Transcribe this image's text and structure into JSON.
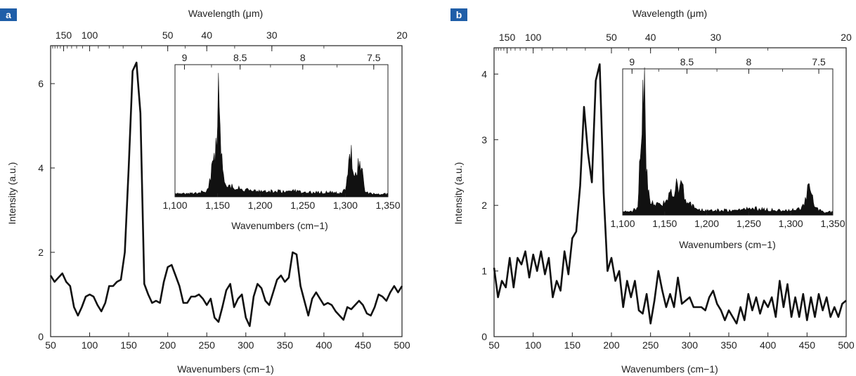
{
  "chart_data": [
    {
      "panel": "a",
      "type": "line",
      "xlabel": "Wavenumbers (cm−1)",
      "ylabel": "Intensity (a.u.)",
      "top_axis_label": "Wavelength (μm)",
      "xlim": [
        50,
        500
      ],
      "ylim": [
        0,
        6.9
      ],
      "x_ticks": [
        "50",
        "100",
        "150",
        "200",
        "250",
        "300",
        "350",
        "400",
        "450",
        "500"
      ],
      "y_ticks": [
        "0",
        "2",
        "4",
        "6"
      ],
      "top_ticks": [
        "150",
        "100",
        "50",
        "40",
        "30",
        "20"
      ],
      "series": [
        {
          "x": [
            50,
            55,
            60,
            65,
            70,
            75,
            80,
            85,
            90,
            95,
            100,
            105,
            110,
            115,
            120,
            125,
            130,
            135,
            140,
            145,
            150,
            155,
            160,
            165,
            170,
            175,
            180,
            185,
            190,
            195,
            200,
            205,
            210,
            215,
            220,
            225,
            230,
            235,
            240,
            245,
            250,
            255,
            260,
            265,
            270,
            275,
            280,
            285,
            290,
            295,
            300,
            305,
            310,
            315,
            320,
            325,
            330,
            335,
            340,
            345,
            350,
            355,
            360,
            365,
            370,
            375,
            380,
            385,
            390,
            395,
            400,
            405,
            410,
            415,
            420,
            425,
            430,
            435,
            440,
            445,
            450,
            455,
            460,
            465,
            470,
            475,
            480,
            485,
            490,
            495,
            500
          ],
          "y": [
            1.45,
            1.3,
            1.4,
            1.5,
            1.3,
            1.2,
            0.7,
            0.5,
            0.7,
            0.95,
            1.0,
            0.95,
            0.75,
            0.6,
            0.8,
            1.2,
            1.2,
            1.3,
            1.35,
            2.0,
            4.0,
            6.3,
            6.5,
            5.3,
            1.25,
            1.0,
            0.8,
            0.85,
            0.8,
            1.3,
            1.65,
            1.7,
            1.45,
            1.2,
            0.8,
            0.8,
            0.95,
            0.95,
            1.0,
            0.9,
            0.75,
            0.9,
            0.45,
            0.35,
            0.7,
            1.1,
            1.25,
            0.7,
            0.9,
            1.0,
            0.45,
            0.25,
            0.95,
            1.25,
            1.15,
            0.85,
            0.75,
            1.05,
            1.35,
            1.45,
            1.3,
            1.4,
            2.0,
            1.95,
            1.2,
            0.85,
            0.5,
            0.9,
            1.05,
            0.9,
            0.75,
            0.8,
            0.75,
            0.6,
            0.5,
            0.4,
            0.7,
            0.65,
            0.75,
            0.85,
            0.75,
            0.55,
            0.5,
            0.7,
            1.0,
            0.95,
            0.85,
            1.05,
            1.2,
            1.05,
            1.2
          ]
        }
      ],
      "inset": {
        "type": "area",
        "xlabel": "Wavenumbers (cm−1)",
        "xlim": [
          1100,
          1350
        ],
        "x_ticks": [
          "1,100",
          "1,150",
          "1,200",
          "1,250",
          "1,300",
          "1,350"
        ],
        "top_ticks": [
          "9",
          "8.5",
          "8",
          "7.5"
        ],
        "x": [
          1100,
          1110,
          1120,
          1130,
          1138,
          1142,
          1145,
          1147,
          1149,
          1150,
          1151,
          1152,
          1153,
          1154,
          1156,
          1158,
          1162,
          1168,
          1175,
          1185,
          1200,
          1220,
          1240,
          1260,
          1280,
          1295,
          1300,
          1303,
          1305,
          1307,
          1309,
          1311,
          1313,
          1315,
          1317,
          1319,
          1321,
          1323,
          1326,
          1330,
          1340,
          1350
        ],
        "y": [
          0.02,
          0.02,
          0.02,
          0.03,
          0.05,
          0.15,
          0.28,
          0.33,
          0.45,
          0.65,
          0.95,
          0.98,
          0.6,
          0.35,
          0.18,
          0.12,
          0.1,
          0.07,
          0.06,
          0.05,
          0.04,
          0.04,
          0.04,
          0.03,
          0.03,
          0.03,
          0.05,
          0.18,
          0.3,
          0.33,
          0.22,
          0.2,
          0.22,
          0.25,
          0.23,
          0.22,
          0.15,
          0.05,
          0.03,
          0.02,
          0.02,
          0.02
        ]
      }
    },
    {
      "panel": "b",
      "type": "line",
      "xlabel": "Wavenumbers (cm−1)",
      "ylabel": "Intensity (a.u.)",
      "top_axis_label": "Wavelength (μm)",
      "xlim": [
        50,
        500
      ],
      "ylim": [
        0,
        4.4
      ],
      "x_ticks": [
        "50",
        "100",
        "150",
        "200",
        "250",
        "300",
        "350",
        "400",
        "450",
        "500"
      ],
      "y_ticks": [
        "0",
        "1",
        "2",
        "3",
        "4"
      ],
      "top_ticks": [
        "150",
        "100",
        "50",
        "40",
        "30",
        "20"
      ],
      "series": [
        {
          "x": [
            50,
            55,
            60,
            65,
            70,
            75,
            80,
            85,
            90,
            95,
            100,
            105,
            110,
            115,
            120,
            125,
            130,
            135,
            140,
            145,
            150,
            155,
            160,
            165,
            170,
            175,
            180,
            185,
            190,
            195,
            200,
            205,
            210,
            215,
            220,
            225,
            230,
            235,
            240,
            245,
            250,
            255,
            260,
            265,
            270,
            275,
            280,
            285,
            290,
            295,
            300,
            305,
            310,
            315,
            320,
            325,
            330,
            335,
            340,
            345,
            350,
            355,
            360,
            365,
            370,
            375,
            380,
            385,
            390,
            395,
            400,
            405,
            410,
            415,
            420,
            425,
            430,
            435,
            440,
            445,
            450,
            455,
            460,
            465,
            470,
            475,
            480,
            485,
            490,
            495,
            500
          ],
          "y": [
            1.05,
            0.6,
            0.85,
            0.75,
            1.2,
            0.75,
            1.2,
            1.1,
            1.3,
            0.9,
            1.25,
            1.0,
            1.3,
            0.95,
            1.2,
            0.6,
            0.85,
            0.7,
            1.3,
            0.95,
            1.5,
            1.6,
            2.3,
            3.5,
            2.8,
            2.35,
            3.9,
            4.15,
            2.2,
            1.0,
            1.2,
            0.85,
            1.0,
            0.45,
            0.85,
            0.6,
            0.85,
            0.4,
            0.35,
            0.65,
            0.2,
            0.55,
            1.0,
            0.7,
            0.45,
            0.65,
            0.45,
            0.9,
            0.5,
            0.55,
            0.6,
            0.45,
            0.45,
            0.45,
            0.4,
            0.6,
            0.7,
            0.5,
            0.4,
            0.25,
            0.4,
            0.3,
            0.2,
            0.45,
            0.25,
            0.65,
            0.4,
            0.6,
            0.35,
            0.55,
            0.45,
            0.6,
            0.3,
            0.85,
            0.45,
            0.8,
            0.3,
            0.6,
            0.3,
            0.65,
            0.25,
            0.6,
            0.3,
            0.65,
            0.4,
            0.6,
            0.3,
            0.45,
            0.3,
            0.5,
            0.55
          ]
        }
      ],
      "inset": {
        "type": "area",
        "xlabel": "Wavenumbers (cm−1)",
        "xlim": [
          1100,
          1350
        ],
        "x_ticks": [
          "1,100",
          "1,150",
          "1,200",
          "1,250",
          "1,300",
          "1,350"
        ],
        "top_ticks": [
          "9",
          "8.5",
          "8",
          "7.5"
        ],
        "x": [
          1100,
          1110,
          1118,
          1120,
          1122,
          1124,
          1125,
          1126,
          1127,
          1128,
          1130,
          1133,
          1138,
          1145,
          1150,
          1155,
          1160,
          1164,
          1168,
          1172,
          1176,
          1182,
          1190,
          1200,
          1220,
          1240,
          1250,
          1260,
          1280,
          1300,
          1312,
          1316,
          1320,
          1322,
          1324,
          1326,
          1328,
          1332,
          1340,
          1350
        ],
        "y": [
          0.02,
          0.02,
          0.05,
          0.3,
          0.65,
          0.95,
          0.99,
          0.85,
          0.55,
          0.35,
          0.2,
          0.1,
          0.06,
          0.07,
          0.09,
          0.12,
          0.17,
          0.2,
          0.21,
          0.17,
          0.1,
          0.06,
          0.04,
          0.03,
          0.03,
          0.03,
          0.05,
          0.04,
          0.03,
          0.03,
          0.04,
          0.07,
          0.18,
          0.26,
          0.2,
          0.12,
          0.07,
          0.04,
          0.02,
          0.02
        ]
      }
    }
  ]
}
